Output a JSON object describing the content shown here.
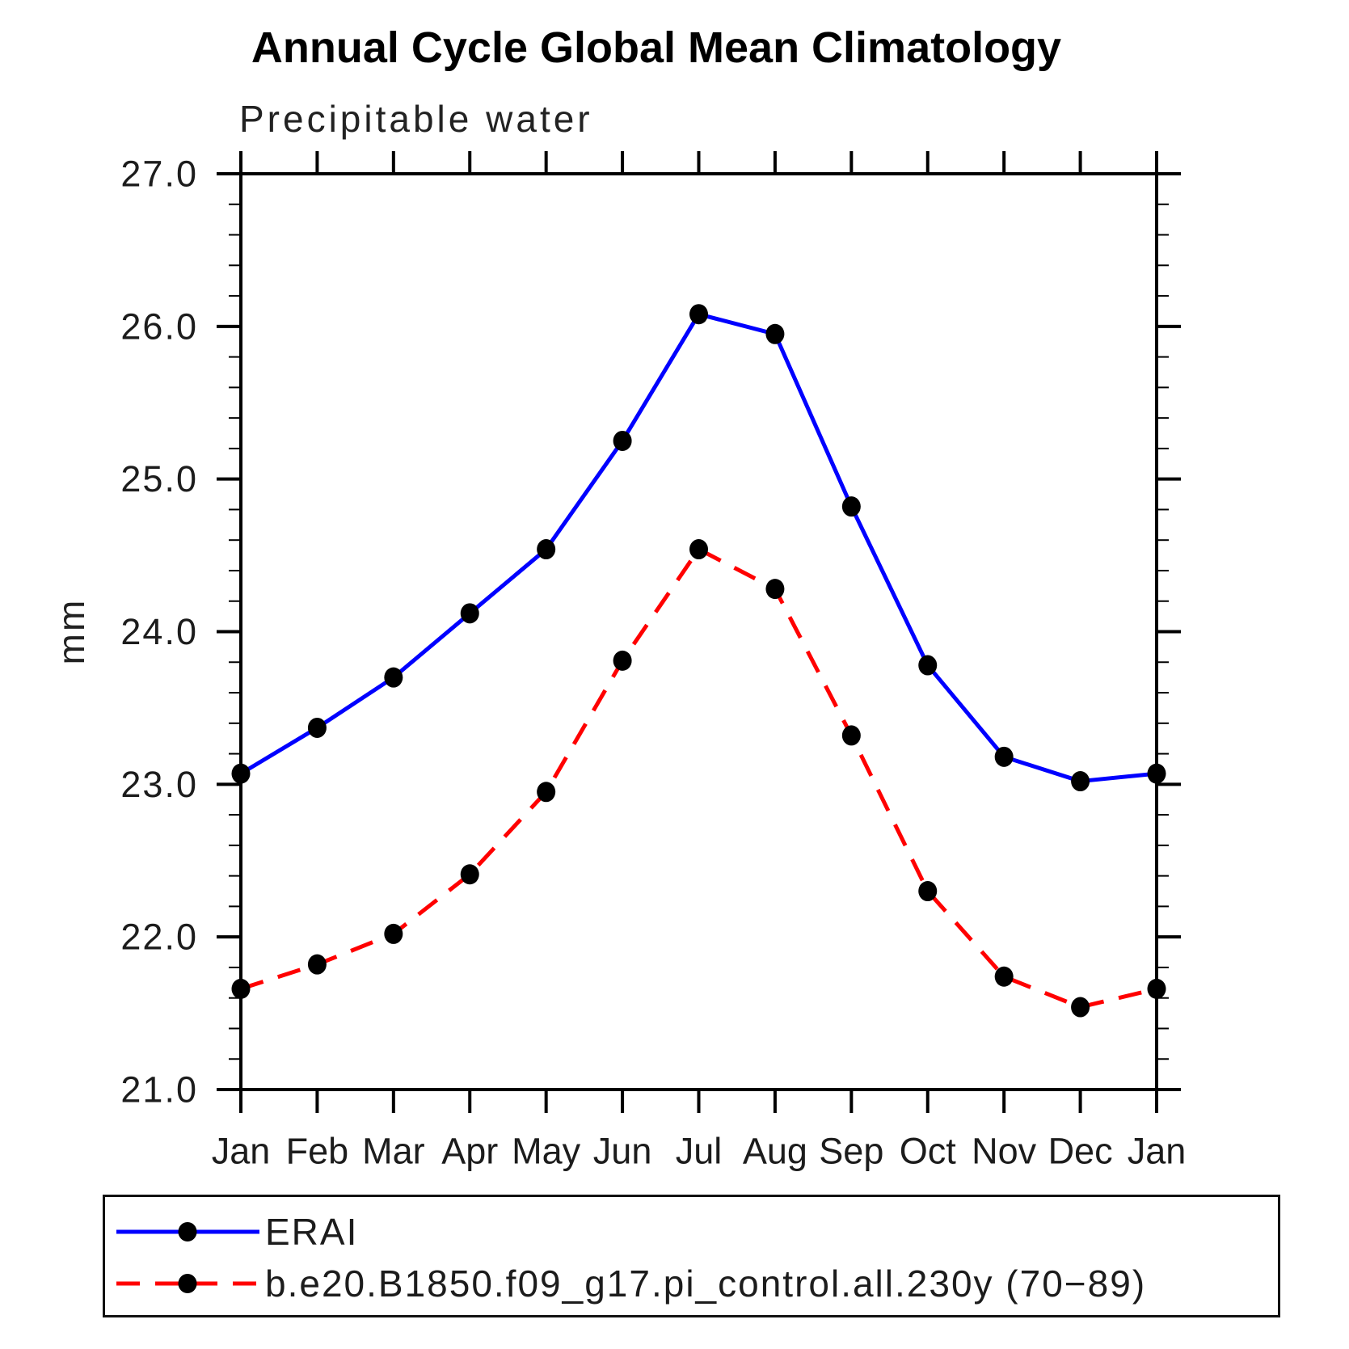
{
  "title": "Annual Cycle Global Mean Climatology",
  "subtitle": "Precipitable water",
  "y_axis": {
    "label": "mm",
    "min": 21.0,
    "max": 27.0,
    "major_step": 1.0,
    "minor_step": 0.2,
    "tick_labels": [
      "21.0",
      "22.0",
      "23.0",
      "24.0",
      "25.0",
      "26.0",
      "27.0"
    ]
  },
  "x_axis": {
    "tick_labels": [
      "Jan",
      "Feb",
      "Mar",
      "Apr",
      "May",
      "Jun",
      "Jul",
      "Aug",
      "Sep",
      "Oct",
      "Nov",
      "Dec",
      "Jan"
    ]
  },
  "chart_data": {
    "type": "line",
    "categories": [
      "Jan",
      "Feb",
      "Mar",
      "Apr",
      "May",
      "Jun",
      "Jul",
      "Aug",
      "Sep",
      "Oct",
      "Nov",
      "Dec",
      "Jan"
    ],
    "series": [
      {
        "name": "ERAI",
        "color": "#0000ff",
        "line_style": "solid",
        "marker": "circle",
        "marker_color": "#000000",
        "values": [
          23.07,
          23.37,
          23.7,
          24.12,
          24.54,
          25.25,
          26.08,
          25.95,
          24.82,
          23.78,
          23.18,
          23.02,
          23.07
        ]
      },
      {
        "name": "b.e20.B1850.f09_g17.pi_control.all.230y (70−89)",
        "color": "#ff0000",
        "line_style": "dashed",
        "marker": "circle",
        "marker_color": "#000000",
        "values": [
          21.66,
          21.82,
          22.02,
          22.41,
          22.95,
          23.81,
          24.54,
          24.28,
          23.32,
          22.3,
          21.74,
          21.54,
          21.66
        ]
      }
    ],
    "title": "Annual Cycle Global Mean Climatology",
    "subtitle": "Precipitable water",
    "xlabel": "",
    "ylabel": "mm",
    "ylim": [
      21.0,
      27.0
    ],
    "grid": false,
    "legend_position": "bottom"
  }
}
